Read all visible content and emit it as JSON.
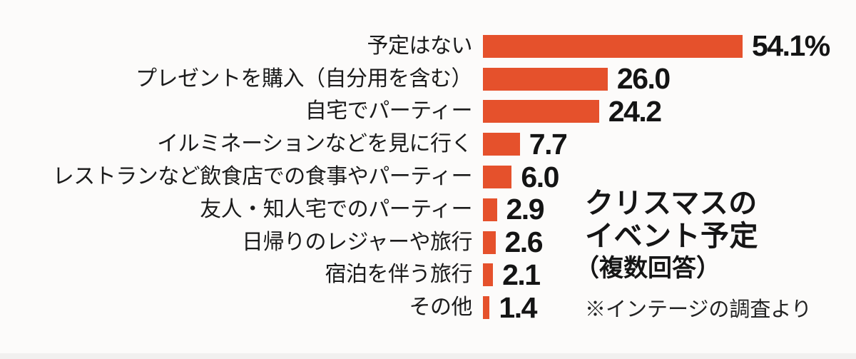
{
  "chart_data": {
    "type": "bar",
    "orientation": "horizontal",
    "title": "クリスマスのイベント予定",
    "title_lines": [
      "クリスマスの",
      "イベント予定"
    ],
    "subtitle": "（複数回答）",
    "note": "※インテージの調査より",
    "unit": "%",
    "bar_color": "#e5512c",
    "text_color": "#1b1b1b",
    "background_color": "#fcfbfa",
    "axes_visible": false,
    "grid": false,
    "legend": false,
    "xlim": [
      0,
      55
    ],
    "categories": [
      "予定はない",
      "プレゼントを購入（自分用を含む）",
      "自宅でパーティー",
      "イルミネーションなどを見に行く",
      "レストランなど飲食店での食事やパーティー",
      "友人・知人宅でのパーティー",
      "日帰りのレジャーや旅行",
      "宿泊を伴う旅行",
      "その他"
    ],
    "values": [
      54.1,
      26.0,
      24.2,
      7.7,
      6.0,
      2.9,
      2.6,
      2.1,
      1.4
    ],
    "value_labels": [
      "54.1%",
      "26.0",
      "24.2",
      "7.7",
      "6.0",
      "2.9",
      "2.6",
      "2.1",
      "1.4"
    ]
  }
}
